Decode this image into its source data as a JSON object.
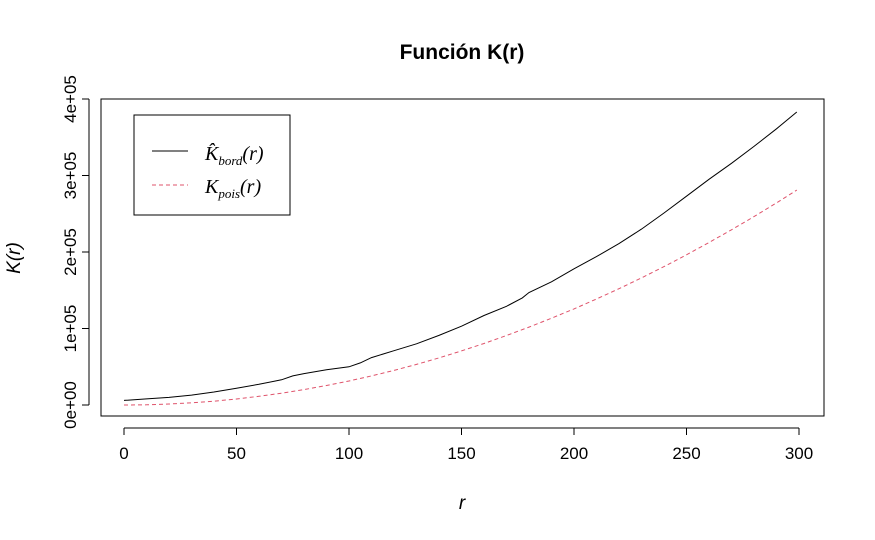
{
  "chart_data": {
    "type": "line",
    "title": "Función K(r)",
    "xlabel": "r",
    "ylabel": "K(r)",
    "xlim": [
      0,
      300
    ],
    "ylim": [
      0,
      400000
    ],
    "x_ticks": [
      0,
      50,
      100,
      150,
      200,
      250,
      300
    ],
    "x_tick_labels": [
      "0",
      "50",
      "100",
      "150",
      "200",
      "250",
      "300"
    ],
    "y_ticks": [
      0,
      100000,
      200000,
      300000,
      400000
    ],
    "y_tick_labels": [
      "0e+00",
      "1e+05",
      "2e+05",
      "3e+05",
      "4e+05"
    ],
    "grid": false,
    "legend_position": "top-left",
    "series": [
      {
        "name": "K̂bord(r)",
        "legend_main": "K̂",
        "legend_sub": "bord",
        "legend_tail": "(r)",
        "color": "#000000",
        "dash": "solid",
        "x": [
          0,
          10,
          20,
          30,
          40,
          50,
          60,
          70,
          75,
          80,
          90,
          100,
          105,
          110,
          120,
          130,
          140,
          150,
          160,
          170,
          177,
          180,
          190,
          200,
          210,
          220,
          230,
          240,
          250,
          260,
          270,
          280,
          290,
          299
        ],
        "y": [
          6000,
          8000,
          10000,
          13000,
          17000,
          22000,
          27000,
          33000,
          38000,
          41000,
          46000,
          50000,
          55000,
          62000,
          71000,
          80000,
          91000,
          103000,
          117000,
          129000,
          140000,
          147000,
          161000,
          178000,
          194000,
          211000,
          230000,
          251000,
          273000,
          295000,
          316000,
          338000,
          361000,
          383000
        ]
      },
      {
        "name": "Kpois(r)",
        "legend_main": "K",
        "legend_sub": "pois",
        "legend_tail": "(r)",
        "color": "#DF536B",
        "dash": "dashed",
        "x": [
          0,
          10,
          20,
          30,
          40,
          50,
          60,
          70,
          80,
          90,
          100,
          110,
          120,
          130,
          140,
          150,
          160,
          170,
          180,
          190,
          200,
          210,
          220,
          230,
          240,
          250,
          260,
          270,
          280,
          290,
          299
        ],
        "y": [
          0,
          314,
          1257,
          2827,
          5027,
          7854,
          11310,
          15394,
          20106,
          25447,
          31416,
          38013,
          45239,
          53093,
          61575,
          70686,
          80425,
          90792,
          101788,
          113411,
          125664,
          138544,
          152053,
          166190,
          180956,
          196350,
          212372,
          229022,
          246301,
          264208,
          280856
        ]
      }
    ]
  }
}
